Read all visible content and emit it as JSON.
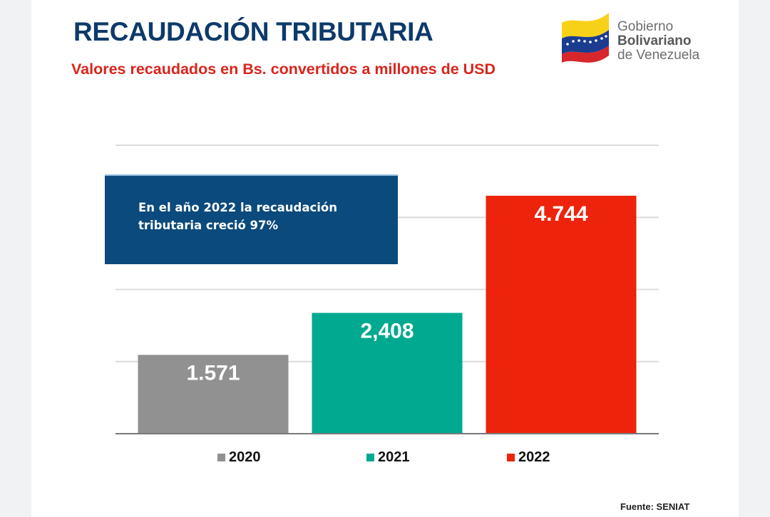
{
  "header": {
    "title": "RECAUDACIÓN TRIBUTARIA",
    "subtitle": "Valores recaudados en Bs. convertidos a millones de USD"
  },
  "logo": {
    "icon": "venezuela-flag-icon",
    "line1": "Gobierno",
    "line2": "Bolivariano",
    "line3": "de Venezuela"
  },
  "note": {
    "text": "En el año 2022 la recaudación tributaria creció  97%"
  },
  "source": "Fuente: SENIAT",
  "chart_data": {
    "type": "bar",
    "title": "RECAUDACIÓN TRIBUTARIA",
    "subtitle": "Valores recaudados en Bs. convertidos a millones de USD",
    "xlabel": "",
    "ylabel": "",
    "categories": [
      "2020",
      "2021",
      "2022"
    ],
    "values": [
      1571,
      2408,
      4744
    ],
    "data_labels": [
      "1.571",
      "2,408",
      "4.744"
    ],
    "colors": [
      "#919191",
      "#00a98f",
      "#ee230c"
    ],
    "ylim": [
      0,
      5750
    ],
    "gridlines": [
      1437.5,
      2875,
      4312.5,
      5750
    ],
    "grid": true,
    "legend": {
      "position": "bottom",
      "entries": [
        {
          "label": "2020",
          "color": "#919191"
        },
        {
          "label": "2021",
          "color": "#00a98f"
        },
        {
          "label": "2022",
          "color": "#ee230c"
        }
      ]
    },
    "annotation": "En el año 2022 la recaudación tributaria creció  97%"
  }
}
